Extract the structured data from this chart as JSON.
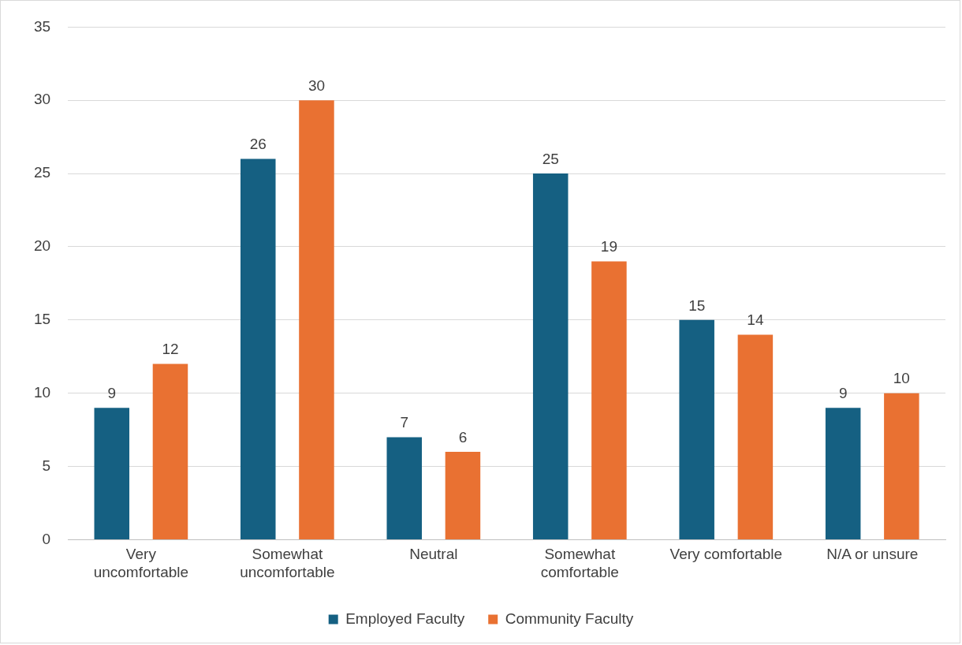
{
  "chart_data": {
    "type": "bar",
    "categories": [
      "Very uncomfortable",
      "Somewhat uncomfortable",
      "Neutral",
      "Somewhat comfortable",
      "Very comfortable",
      "N/A or unsure"
    ],
    "series": [
      {
        "name": "Employed Faculty",
        "color": "#156082",
        "values": [
          9,
          26,
          7,
          25,
          15,
          9
        ]
      },
      {
        "name": "Community Faculty",
        "color": "#e97132",
        "values": [
          12,
          30,
          6,
          19,
          14,
          10
        ]
      }
    ],
    "ylim": [
      0,
      35
    ],
    "yticks": [
      0,
      5,
      10,
      15,
      20,
      25,
      30,
      35
    ],
    "grid": "y",
    "legend": "bottom",
    "data_labels": true
  }
}
